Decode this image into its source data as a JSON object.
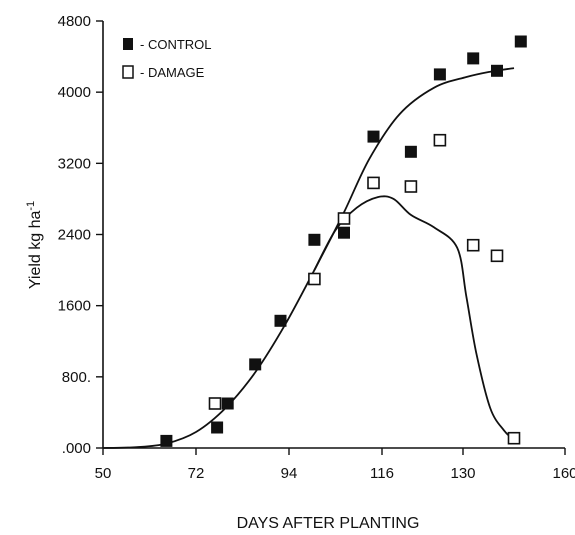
{
  "chart_data": {
    "type": "scatter",
    "title": "",
    "xlabel": "DAYS AFTER PLANTING",
    "ylabel": "Yield kg ha",
    "ylabel_superscript": "-1",
    "xlim": [
      50,
      160
    ],
    "ylim": [
      0,
      4800
    ],
    "x_ticks": [
      50,
      72,
      94,
      116,
      130,
      160
    ],
    "x_tick_labels": [
      "50",
      "72",
      "94",
      "116",
      "130",
      "160"
    ],
    "y_ticks": [
      0,
      800,
      1600,
      2400,
      3200,
      4000,
      4800
    ],
    "y_tick_labels": [
      ".000",
      "800.",
      "1600",
      "2400",
      "3200",
      "4000",
      "4800"
    ],
    "grid": false,
    "legend_position": "top-left",
    "series": [
      {
        "name": "- CONTROL",
        "marker": "filled-square",
        "points": [
          {
            "x": 65,
            "y": 80
          },
          {
            "x": 77,
            "y": 230
          },
          {
            "x": 79.5,
            "y": 500
          },
          {
            "x": 86,
            "y": 940
          },
          {
            "x": 92,
            "y": 1430
          },
          {
            "x": 100,
            "y": 2340
          },
          {
            "x": 107,
            "y": 2420
          },
          {
            "x": 114,
            "y": 3500
          },
          {
            "x": 121,
            "y": 3330
          },
          {
            "x": 126,
            "y": 4200
          },
          {
            "x": 133,
            "y": 4380
          },
          {
            "x": 140,
            "y": 4240
          },
          {
            "x": 147,
            "y": 4570
          }
        ],
        "fit_curve": [
          {
            "x": 50,
            "y": 0
          },
          {
            "x": 58,
            "y": 10
          },
          {
            "x": 65,
            "y": 50
          },
          {
            "x": 72,
            "y": 180
          },
          {
            "x": 79,
            "y": 450
          },
          {
            "x": 86,
            "y": 850
          },
          {
            "x": 93,
            "y": 1380
          },
          {
            "x": 100,
            "y": 2000
          },
          {
            "x": 107,
            "y": 2650
          },
          {
            "x": 113,
            "y": 3250
          },
          {
            "x": 119,
            "y": 3750
          },
          {
            "x": 125,
            "y": 4050
          },
          {
            "x": 131,
            "y": 4170
          },
          {
            "x": 138,
            "y": 4230
          },
          {
            "x": 145,
            "y": 4270
          }
        ]
      },
      {
        "name": "- DAMAGE",
        "marker": "open-square",
        "points": [
          {
            "x": 76.5,
            "y": 500
          },
          {
            "x": 100,
            "y": 1900
          },
          {
            "x": 107,
            "y": 2580
          },
          {
            "x": 114,
            "y": 2980
          },
          {
            "x": 121,
            "y": 2940
          },
          {
            "x": 126,
            "y": 3460
          },
          {
            "x": 133,
            "y": 2280
          },
          {
            "x": 140,
            "y": 2160
          },
          {
            "x": 145,
            "y": 110
          }
        ],
        "fit_curve": [
          {
            "x": 100,
            "y": 2000
          },
          {
            "x": 105,
            "y": 2450
          },
          {
            "x": 110,
            "y": 2700
          },
          {
            "x": 115,
            "y": 2820
          },
          {
            "x": 118,
            "y": 2800
          },
          {
            "x": 121,
            "y": 2620
          },
          {
            "x": 125,
            "y": 2480
          },
          {
            "x": 129,
            "y": 2250
          },
          {
            "x": 131,
            "y": 1700
          },
          {
            "x": 134,
            "y": 1050
          },
          {
            "x": 138,
            "y": 450
          },
          {
            "x": 142,
            "y": 200
          },
          {
            "x": 145,
            "y": 90
          }
        ]
      }
    ]
  }
}
